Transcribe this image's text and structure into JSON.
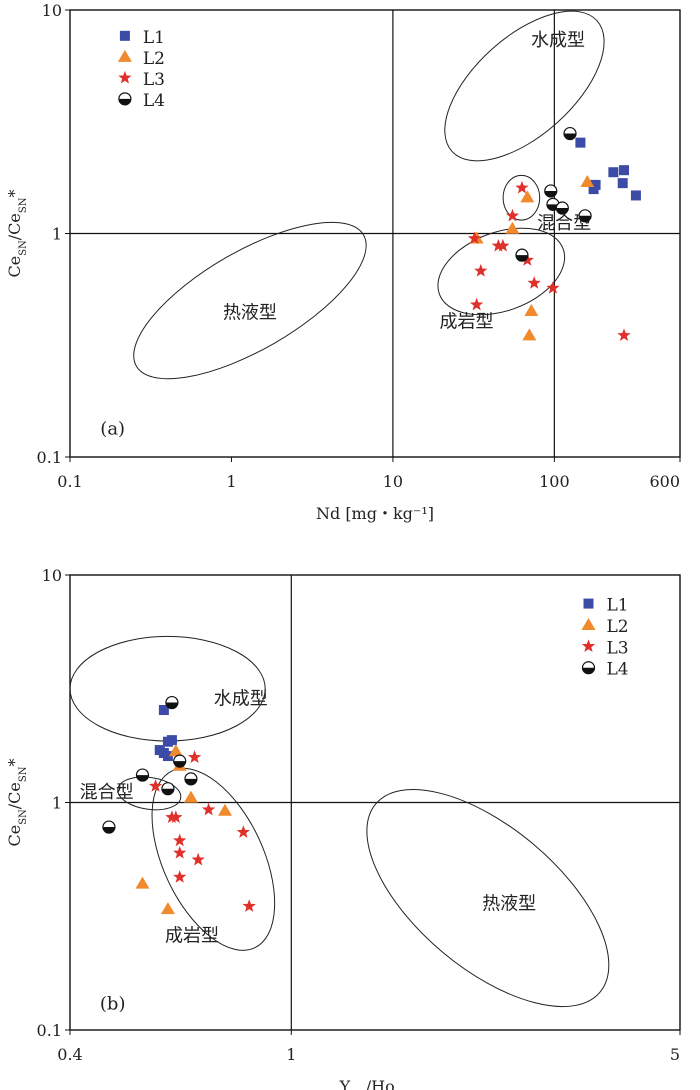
{
  "colors": {
    "L1": "#3b4ba6",
    "L2": "#f08a2c",
    "L3": "#e0302a",
    "L4": "#111111"
  },
  "chart_data": [
    {
      "panel": "(a)",
      "type": "scatter",
      "x_scale": "log",
      "y_scale": "log",
      "xlim": [
        0.1,
        600
      ],
      "ylim": [
        0.1,
        10
      ],
      "x_ticks": [
        "0.1",
        "1",
        "10",
        "100",
        "600"
      ],
      "y_ticks": [
        "0.1",
        "1",
        "10"
      ],
      "xlabel": "Nd [mg・kg⁻¹]",
      "ylabel": "Ce_SN/Ce_SN*",
      "reference_lines": {
        "x": [
          10,
          100
        ],
        "y": [
          1
        ]
      },
      "regions": [
        {
          "label": "水成型",
          "type": "hydrogenetic"
        },
        {
          "label": "混合型",
          "type": "mixed"
        },
        {
          "label": "成岩型",
          "type": "diagenetic"
        },
        {
          "label": "热液型",
          "type": "hydrothermal"
        }
      ],
      "legend": {
        "placement": "top-left",
        "entries": [
          "L1",
          "L2",
          "L3",
          "L4"
        ]
      },
      "series": [
        {
          "name": "L1",
          "marker": "square",
          "points": [
            [
              145,
              2.55
            ],
            [
              232,
              1.88
            ],
            [
              270,
              1.92
            ],
            [
              180,
              1.65
            ],
            [
              265,
              1.68
            ],
            [
              320,
              1.48
            ],
            [
              175,
              1.58
            ]
          ]
        },
        {
          "name": "L2",
          "marker": "triangle",
          "points": [
            [
              160,
              1.7
            ],
            [
              68,
              1.45
            ],
            [
              55,
              1.05
            ],
            [
              33,
              0.95
            ],
            [
              72,
              0.45
            ],
            [
              70,
              0.35
            ]
          ]
        },
        {
          "name": "L3",
          "marker": "star",
          "points": [
            [
              63,
              1.6
            ],
            [
              55,
              1.2
            ],
            [
              32,
              0.95
            ],
            [
              35,
              0.68
            ],
            [
              45,
              0.88
            ],
            [
              48,
              0.88
            ],
            [
              68,
              0.76
            ],
            [
              75,
              0.6
            ],
            [
              98,
              0.57
            ],
            [
              33,
              0.48
            ],
            [
              270,
              0.35
            ]
          ]
        },
        {
          "name": "L4",
          "marker": "half-circle",
          "points": [
            [
              125,
              2.8
            ],
            [
              95,
              1.55
            ],
            [
              98,
              1.35
            ],
            [
              112,
              1.3
            ],
            [
              155,
              1.2
            ],
            [
              63,
              0.8
            ]
          ]
        }
      ]
    },
    {
      "panel": "(b)",
      "type": "scatter",
      "x_scale": "log",
      "y_scale": "log",
      "xlim": [
        0.4,
        5
      ],
      "ylim": [
        0.1,
        10
      ],
      "x_ticks": [
        "0.4",
        "1",
        "5"
      ],
      "y_ticks": [
        "0.1",
        "1",
        "10"
      ],
      "xlabel": "Y_SN/Ho_SN",
      "ylabel": "Ce_SN/Ce_SN*",
      "reference_lines": {
        "x": [
          1
        ],
        "y": [
          1
        ]
      },
      "regions": [
        {
          "label": "水成型",
          "type": "hydrogenetic"
        },
        {
          "label": "混合型",
          "type": "mixed"
        },
        {
          "label": "成岩型",
          "type": "diagenetic"
        },
        {
          "label": "热液型",
          "type": "hydrothermal"
        }
      ],
      "legend": {
        "placement": "top-right",
        "entries": [
          "L1",
          "L2",
          "L3",
          "L4"
        ]
      },
      "series": [
        {
          "name": "L1",
          "marker": "square",
          "points": [
            [
              0.59,
              2.55
            ],
            [
              0.6,
              1.85
            ],
            [
              0.61,
              1.88
            ],
            [
              0.58,
              1.7
            ],
            [
              0.59,
              1.65
            ],
            [
              0.6,
              1.6
            ]
          ]
        },
        {
          "name": "L2",
          "marker": "triangle",
          "points": [
            [
              0.62,
              1.68
            ],
            [
              0.63,
              1.45
            ],
            [
              0.66,
              1.05
            ],
            [
              0.76,
              0.92
            ],
            [
              0.54,
              0.44
            ],
            [
              0.6,
              0.34
            ]
          ]
        },
        {
          "name": "L3",
          "marker": "star",
          "points": [
            [
              0.67,
              1.58
            ],
            [
              0.57,
              1.18
            ],
            [
              0.61,
              0.86
            ],
            [
              0.62,
              0.86
            ],
            [
              0.63,
              0.68
            ],
            [
              0.63,
              0.6
            ],
            [
              0.68,
              0.56
            ],
            [
              0.63,
              0.47
            ],
            [
              0.71,
              0.93
            ],
            [
              0.82,
              0.74
            ],
            [
              0.84,
              0.35
            ]
          ]
        },
        {
          "name": "L4",
          "marker": "half-circle",
          "points": [
            [
              0.61,
              2.75
            ],
            [
              0.63,
              1.52
            ],
            [
              0.66,
              1.27
            ],
            [
              0.54,
              1.32
            ],
            [
              0.6,
              1.15
            ],
            [
              0.47,
              0.78
            ]
          ]
        }
      ]
    }
  ]
}
